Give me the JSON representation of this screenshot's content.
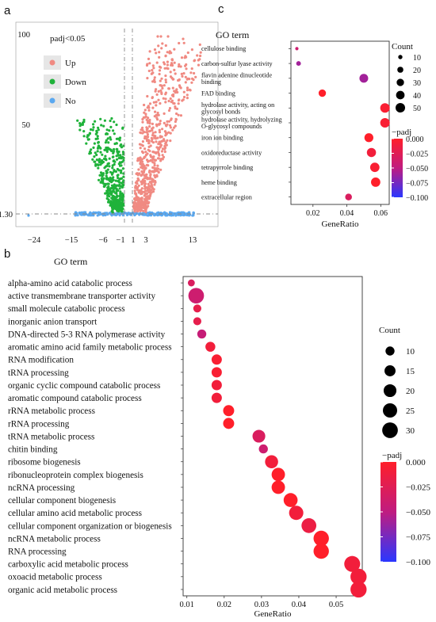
{
  "panel_labels": {
    "a": "a",
    "b": "b",
    "c": "c"
  },
  "colors": {
    "up": "#f08a82",
    "down": "#1fb23a",
    "no": "#5aa8f0",
    "padj_low": "#ff1f2a",
    "padj_high": "#2a37ff",
    "legend_bg": "#e6e6e6"
  },
  "chart_data": [
    {
      "id": "a",
      "type": "scatter",
      "title": "",
      "xlabel": "",
      "ylabel": "",
      "x_ticks": [
        "−24",
        "−15",
        "−6",
        "−1",
        "1",
        "3",
        "13"
      ],
      "y_ticks": [
        "1.30",
        "50",
        "100"
      ],
      "threshold_lines": {
        "x": [
          -1,
          1
        ],
        "y": 1.3
      },
      "legend": {
        "title": "padj<0.05",
        "entries": [
          {
            "label": "Up",
            "color": "#f08a82"
          },
          {
            "label": "Down",
            "color": "#1fb23a"
          },
          {
            "label": "No",
            "color": "#5aa8f0"
          }
        ]
      }
    },
    {
      "id": "b",
      "type": "scatter",
      "subtype": "dot-plot",
      "y_title": "GO term",
      "xlabel": "GeneRatio",
      "xlim": [
        0.009,
        0.057
      ],
      "x_ticks": [
        "0.01",
        "0.02",
        "0.03",
        "0.04",
        "0.05"
      ],
      "x_tick_values": [
        0.01,
        0.02,
        0.03,
        0.04,
        0.05
      ],
      "terms": [
        "alpha-amino acid catabolic process",
        "active transmembrane transporter activity",
        "small molecule catabolic process",
        "inorganic anion transport",
        "DNA-directed 5-3 RNA polymerase activity",
        "aromatic amino acid family metabolic process",
        "RNA modification",
        "tRNA processing",
        "organic cyclic compound catabolic process",
        "aromatic compound catabolic process",
        "rRNA metabolic process",
        "rRNA processing",
        "tRNA metabolic process",
        "chitin binding",
        "ribosome biogenesis",
        "ribonucleoprotein complex biogenesis",
        "ncRNA processing",
        "cellular component biogenesis",
        "cellular amino acid metabolic process",
        "cellular component organization or biogenesis",
        "ncRNA metabolic process",
        "RNA processing",
        "carboxylic acid metabolic process",
        "oxoacid metabolic process",
        "organic acid metabolic process"
      ],
      "points": [
        {
          "x": 0.0112,
          "count": 6,
          "padj": -0.03
        },
        {
          "x": 0.0125,
          "count": 30,
          "padj": -0.04
        },
        {
          "x": 0.0128,
          "count": 8,
          "padj": -0.02
        },
        {
          "x": 0.0128,
          "count": 8,
          "padj": -0.02
        },
        {
          "x": 0.014,
          "count": 10,
          "padj": -0.045
        },
        {
          "x": 0.0163,
          "count": 12,
          "padj": -0.01
        },
        {
          "x": 0.018,
          "count": 13,
          "padj": -0.005
        },
        {
          "x": 0.018,
          "count": 13,
          "padj": -0.005
        },
        {
          "x": 0.018,
          "count": 13,
          "padj": -0.01
        },
        {
          "x": 0.018,
          "count": 13,
          "padj": -0.01
        },
        {
          "x": 0.0212,
          "count": 15,
          "padj": 0.0
        },
        {
          "x": 0.0212,
          "count": 15,
          "padj": 0.0
        },
        {
          "x": 0.0293,
          "count": 20,
          "padj": -0.03
        },
        {
          "x": 0.0305,
          "count": 10,
          "padj": -0.04
        },
        {
          "x": 0.0327,
          "count": 21,
          "padj": -0.01
        },
        {
          "x": 0.0345,
          "count": 22,
          "padj": 0.0
        },
        {
          "x": 0.0345,
          "count": 22,
          "padj": 0.0
        },
        {
          "x": 0.0378,
          "count": 24,
          "padj": 0.0
        },
        {
          "x": 0.0393,
          "count": 25,
          "padj": -0.01
        },
        {
          "x": 0.0427,
          "count": 27,
          "padj": -0.015
        },
        {
          "x": 0.046,
          "count": 29,
          "padj": 0.0
        },
        {
          "x": 0.046,
          "count": 29,
          "padj": 0.0
        },
        {
          "x": 0.0543,
          "count": 31,
          "padj": -0.01
        },
        {
          "x": 0.056,
          "count": 32,
          "padj": -0.01
        },
        {
          "x": 0.056,
          "count": 32,
          "padj": -0.01
        }
      ],
      "size_legend": {
        "title": "Count",
        "values": [
          "10",
          "15",
          "20",
          "25",
          "30"
        ],
        "counts": [
          10,
          15,
          20,
          25,
          30
        ]
      },
      "color_legend": {
        "title": "−padj",
        "ticks": [
          "0.000",
          "−0.025",
          "−0.050",
          "−0.075",
          "−0.100"
        ]
      }
    },
    {
      "id": "c",
      "type": "scatter",
      "subtype": "dot-plot",
      "y_title": "GO term",
      "xlabel": "GeneRatio",
      "xlim": [
        0.007,
        0.065
      ],
      "x_ticks": [
        "0.02",
        "0.04",
        "0.06"
      ],
      "x_tick_values": [
        0.02,
        0.04,
        0.06
      ],
      "terms": [
        "cellulose binding",
        "carbon-sulfur lyase activity",
        "flavin adenine dinucleotide binding",
        "FAD binding",
        "hydrolase activity, acting on glycosyl bonds",
        "hydrolase activity, hydrolyzing O-glycosyl compounds",
        "iron ion binding",
        "oxidoreductase activity",
        "tetrapyrrole binding",
        "heme binding",
        "extracellular region"
      ],
      "points": [
        {
          "x": 0.0105,
          "count": 6,
          "padj": -0.04
        },
        {
          "x": 0.0115,
          "count": 12,
          "padj": -0.06
        },
        {
          "x": 0.05,
          "count": 42,
          "padj": -0.06
        },
        {
          "x": 0.0255,
          "count": 30,
          "padj": 0.0
        },
        {
          "x": 0.0625,
          "count": 50,
          "padj": -0.005
        },
        {
          "x": 0.0625,
          "count": 50,
          "padj": -0.005
        },
        {
          "x": 0.053,
          "count": 44,
          "padj": 0.0
        },
        {
          "x": 0.0545,
          "count": 46,
          "padj": -0.01
        },
        {
          "x": 0.0565,
          "count": 48,
          "padj": -0.005
        },
        {
          "x": 0.057,
          "count": 48,
          "padj": 0.0
        },
        {
          "x": 0.041,
          "count": 25,
          "padj": -0.03
        }
      ],
      "size_legend": {
        "title": "Count",
        "values": [
          "10",
          "20",
          "30",
          "40",
          "50"
        ],
        "counts": [
          10,
          20,
          30,
          40,
          50
        ]
      },
      "color_legend": {
        "title": "−padj",
        "ticks": [
          "0.000",
          "−0.025",
          "−0.050",
          "−0.075",
          "−0.100"
        ]
      }
    }
  ]
}
